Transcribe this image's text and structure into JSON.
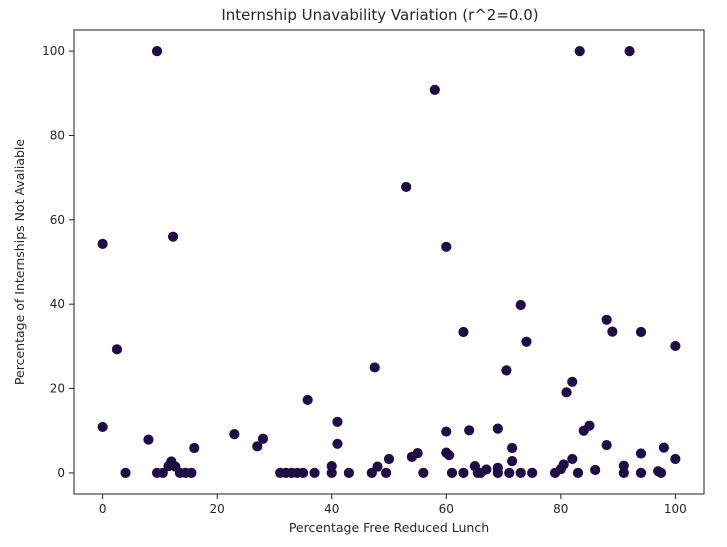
{
  "chart_data": {
    "type": "scatter",
    "title": "Internship Unavability Variation (r^2=0.0)",
    "xlabel": "Percentage Free Reduced Lunch",
    "ylabel": "Percentage of Internships Not Avaliable",
    "xlim": [
      -5,
      105
    ],
    "ylim": [
      -5,
      105
    ],
    "xticks": [
      0,
      20,
      40,
      60,
      80,
      100
    ],
    "yticks": [
      0,
      20,
      40,
      60,
      80,
      100
    ],
    "grid": false,
    "legend": "none",
    "marker_color": "#1f0d45",
    "points": [
      {
        "x": 0,
        "y": 54.3
      },
      {
        "x": 0,
        "y": 10.9
      },
      {
        "x": 2.5,
        "y": 29.3
      },
      {
        "x": 4,
        "y": 0
      },
      {
        "x": 8,
        "y": 7.9
      },
      {
        "x": 9.5,
        "y": 100
      },
      {
        "x": 9.5,
        "y": 0
      },
      {
        "x": 10.5,
        "y": 0
      },
      {
        "x": 11.5,
        "y": 1.6
      },
      {
        "x": 12,
        "y": 2.7
      },
      {
        "x": 12.3,
        "y": 56
      },
      {
        "x": 12.7,
        "y": 1.5
      },
      {
        "x": 13.5,
        "y": 0
      },
      {
        "x": 14.5,
        "y": 0
      },
      {
        "x": 15.5,
        "y": 0
      },
      {
        "x": 16,
        "y": 5.9
      },
      {
        "x": 23,
        "y": 9.2
      },
      {
        "x": 27,
        "y": 6.3
      },
      {
        "x": 28,
        "y": 8.1
      },
      {
        "x": 31,
        "y": 0
      },
      {
        "x": 32,
        "y": 0
      },
      {
        "x": 33,
        "y": 0
      },
      {
        "x": 34,
        "y": 0
      },
      {
        "x": 35,
        "y": 0
      },
      {
        "x": 35.8,
        "y": 17.3
      },
      {
        "x": 37,
        "y": 0
      },
      {
        "x": 40,
        "y": 0
      },
      {
        "x": 40,
        "y": 1.6
      },
      {
        "x": 41,
        "y": 6.9
      },
      {
        "x": 41,
        "y": 12.1
      },
      {
        "x": 43,
        "y": 0
      },
      {
        "x": 47,
        "y": 0
      },
      {
        "x": 47.5,
        "y": 25
      },
      {
        "x": 48,
        "y": 1.5
      },
      {
        "x": 49.5,
        "y": 0
      },
      {
        "x": 50,
        "y": 3.3
      },
      {
        "x": 53,
        "y": 67.8
      },
      {
        "x": 54,
        "y": 3.8
      },
      {
        "x": 55,
        "y": 4.7
      },
      {
        "x": 56,
        "y": 0
      },
      {
        "x": 58,
        "y": 90.8
      },
      {
        "x": 60,
        "y": 53.6
      },
      {
        "x": 60,
        "y": 9.8
      },
      {
        "x": 60,
        "y": 4.8
      },
      {
        "x": 60.5,
        "y": 4.2
      },
      {
        "x": 61,
        "y": 0
      },
      {
        "x": 63,
        "y": 0
      },
      {
        "x": 63,
        "y": 33.4
      },
      {
        "x": 64,
        "y": 10.1
      },
      {
        "x": 65,
        "y": 1.6
      },
      {
        "x": 65.5,
        "y": 0
      },
      {
        "x": 66,
        "y": 0
      },
      {
        "x": 67,
        "y": 0.8
      },
      {
        "x": 69,
        "y": 10.5
      },
      {
        "x": 69,
        "y": 0
      },
      {
        "x": 69,
        "y": 1.2
      },
      {
        "x": 70.5,
        "y": 24.3
      },
      {
        "x": 71,
        "y": 0
      },
      {
        "x": 71.5,
        "y": 5.9
      },
      {
        "x": 71.5,
        "y": 2.8
      },
      {
        "x": 73,
        "y": 39.8
      },
      {
        "x": 73,
        "y": 0
      },
      {
        "x": 74,
        "y": 31.1
      },
      {
        "x": 75,
        "y": 0
      },
      {
        "x": 79,
        "y": 0
      },
      {
        "x": 80,
        "y": 0.9
      },
      {
        "x": 80.5,
        "y": 2
      },
      {
        "x": 81,
        "y": 19.1
      },
      {
        "x": 82,
        "y": 21.6
      },
      {
        "x": 82,
        "y": 3.3
      },
      {
        "x": 83,
        "y": 0
      },
      {
        "x": 83.3,
        "y": 100
      },
      {
        "x": 84,
        "y": 10
      },
      {
        "x": 85,
        "y": 11.2
      },
      {
        "x": 86,
        "y": 0.7
      },
      {
        "x": 88,
        "y": 36.3
      },
      {
        "x": 88,
        "y": 6.6
      },
      {
        "x": 89,
        "y": 33.5
      },
      {
        "x": 91,
        "y": 0
      },
      {
        "x": 91,
        "y": 1.7
      },
      {
        "x": 92,
        "y": 100
      },
      {
        "x": 94,
        "y": 33.4
      },
      {
        "x": 94,
        "y": 4.6
      },
      {
        "x": 94,
        "y": 0
      },
      {
        "x": 97,
        "y": 0.4
      },
      {
        "x": 97.5,
        "y": 0
      },
      {
        "x": 98,
        "y": 6
      },
      {
        "x": 100,
        "y": 30.1
      },
      {
        "x": 100,
        "y": 3.3
      }
    ]
  }
}
